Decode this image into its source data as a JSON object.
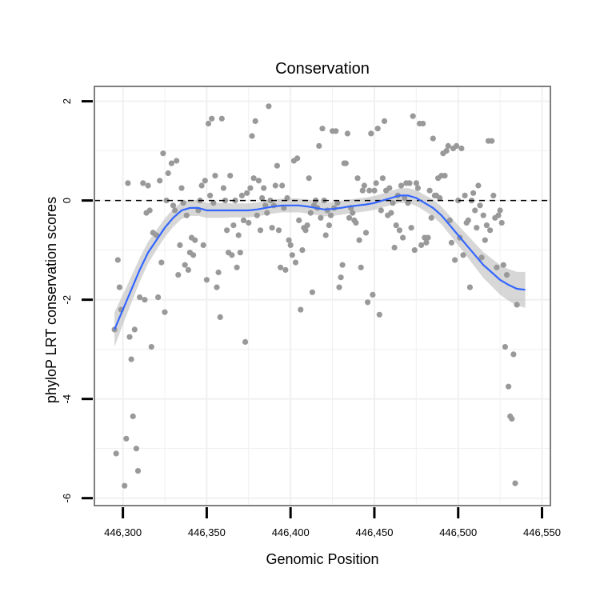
{
  "chart_data": {
    "type": "scatter",
    "title": "Conservation",
    "xlabel": "Genomic Position",
    "ylabel": "phyloP LRT conservation scores",
    "xlim": [
      446283,
      446555
    ],
    "ylim": [
      -6.15,
      2.3
    ],
    "x_ticks": [
      446300,
      446350,
      446400,
      446450,
      446500,
      446550
    ],
    "x_tick_labels": [
      "446,300",
      "446,350",
      "446,400",
      "446,450",
      "446,500",
      "446,550"
    ],
    "y_ticks": [
      -6,
      -4,
      -2,
      0,
      2
    ],
    "y_tick_labels": [
      "-6",
      "-4",
      "-2",
      "0",
      "2"
    ],
    "grid": true,
    "reference_line": {
      "y": 0,
      "style": "dashed"
    },
    "colors": {
      "points": "#999999",
      "smooth_line": "#3366ff",
      "ribbon": "#bdbdbd",
      "frame": "#7f7f7f",
      "grid": "#f0f0f0"
    },
    "points": [
      [
        446295,
        -2.6
      ],
      [
        446296,
        -5.1
      ],
      [
        446297,
        -1.2
      ],
      [
        446298,
        -1.75
      ],
      [
        446299,
        -2.2
      ],
      [
        446301,
        -5.75
      ],
      [
        446302,
        -4.8
      ],
      [
        446303,
        0.35
      ],
      [
        446304,
        -2.75
      ],
      [
        446305,
        -3.2
      ],
      [
        446306,
        -4.35
      ],
      [
        446307,
        -2.6
      ],
      [
        446308,
        -5.0
      ],
      [
        446309,
        -5.45
      ],
      [
        446310,
        -1.95
      ],
      [
        446312,
        0.35
      ],
      [
        446313,
        -2.0
      ],
      [
        446314,
        -0.25
      ],
      [
        446315,
        0.3
      ],
      [
        446316,
        -0.2
      ],
      [
        446317,
        -2.95
      ],
      [
        446318,
        -0.65
      ],
      [
        446320,
        -0.7
      ],
      [
        446321,
        -1.95
      ],
      [
        446322,
        0.4
      ],
      [
        446323,
        -1.25
      ],
      [
        446324,
        0.95
      ],
      [
        446325,
        -2.25
      ],
      [
        446326,
        0.0
      ],
      [
        446327,
        0.55
      ],
      [
        446329,
        0.75
      ],
      [
        446330,
        -0.1
      ],
      [
        446331,
        -0.2
      ],
      [
        446332,
        0.8
      ],
      [
        446333,
        -1.5
      ],
      [
        446334,
        -0.9
      ],
      [
        446335,
        0.25
      ],
      [
        446336,
        -0.05
      ],
      [
        446337,
        -1.3
      ],
      [
        446338,
        -0.3
      ],
      [
        446339,
        -1.4
      ],
      [
        446340,
        -1.05
      ],
      [
        446341,
        -0.75
      ],
      [
        446342,
        -1.1
      ],
      [
        446343,
        -0.8
      ],
      [
        446345,
        -0.2
      ],
      [
        446346,
        0.0
      ],
      [
        446347,
        0.3
      ],
      [
        446348,
        -0.9
      ],
      [
        446349,
        0.4
      ],
      [
        446350,
        -1.6
      ],
      [
        446351,
        1.55
      ],
      [
        446352,
        0.1
      ],
      [
        446353,
        1.65
      ],
      [
        446354,
        -0.05
      ],
      [
        446355,
        0.5
      ],
      [
        446356,
        -1.75
      ],
      [
        446357,
        -1.45
      ],
      [
        446358,
        -2.35
      ],
      [
        446359,
        1.65
      ],
      [
        446360,
        0.25
      ],
      [
        446361,
        0.0
      ],
      [
        446362,
        -0.6
      ],
      [
        446363,
        -1.05
      ],
      [
        446364,
        0.5
      ],
      [
        446365,
        -1.1
      ],
      [
        446366,
        -0.5
      ],
      [
        446367,
        0.0
      ],
      [
        446368,
        -1.35
      ],
      [
        446369,
        -0.7
      ],
      [
        446370,
        -1.05
      ],
      [
        446371,
        0.1
      ],
      [
        446372,
        -0.4
      ],
      [
        446373,
        -2.85
      ],
      [
        446374,
        0.15
      ],
      [
        446375,
        -0.45
      ],
      [
        446376,
        0.25
      ],
      [
        446377,
        1.3
      ],
      [
        446378,
        0.45
      ],
      [
        446379,
        1.6
      ],
      [
        446380,
        -0.3
      ],
      [
        446381,
        0.4
      ],
      [
        446382,
        -0.6
      ],
      [
        446383,
        0.05
      ],
      [
        446384,
        0.25
      ],
      [
        446385,
        -0.1
      ],
      [
        446386,
        -0.25
      ],
      [
        446387,
        1.9
      ],
      [
        446388,
        0.0
      ],
      [
        446389,
        -0.55
      ],
      [
        446390,
        -0.1
      ],
      [
        446391,
        0.3
      ],
      [
        446392,
        0.7
      ],
      [
        446393,
        -0.6
      ],
      [
        446394,
        -1.35
      ],
      [
        446395,
        0.3
      ],
      [
        446396,
        -0.15
      ],
      [
        446397,
        -1.4
      ],
      [
        446398,
        0.05
      ],
      [
        446399,
        -0.8
      ],
      [
        446400,
        -0.9
      ],
      [
        446401,
        -1.1
      ],
      [
        446402,
        0.8
      ],
      [
        446403,
        -1.25
      ],
      [
        446404,
        0.85
      ],
      [
        446405,
        -0.4
      ],
      [
        446406,
        -2.2
      ],
      [
        446407,
        -1.0
      ],
      [
        446408,
        -0.55
      ],
      [
        446409,
        -0.6
      ],
      [
        446410,
        -0.5
      ],
      [
        446411,
        0.45
      ],
      [
        446412,
        -0.25
      ],
      [
        446413,
        -1.85
      ],
      [
        446414,
        -0.1
      ],
      [
        446415,
        0.0
      ],
      [
        446416,
        -0.15
      ],
      [
        446417,
        1.1
      ],
      [
        446418,
        -0.35
      ],
      [
        446419,
        1.45
      ],
      [
        446420,
        0.0
      ],
      [
        446421,
        -0.7
      ],
      [
        446422,
        -0.2
      ],
      [
        446423,
        -0.5
      ],
      [
        446424,
        -0.3
      ],
      [
        446425,
        1.4
      ],
      [
        446426,
        -0.15
      ],
      [
        446427,
        1.4
      ],
      [
        446428,
        -0.05
      ],
      [
        446429,
        -1.75
      ],
      [
        446430,
        -1.55
      ],
      [
        446431,
        -1.3
      ],
      [
        446432,
        0.75
      ],
      [
        446433,
        0.75
      ],
      [
        446434,
        1.35
      ],
      [
        446435,
        -0.35
      ],
      [
        446436,
        -0.15
      ],
      [
        446437,
        -0.25
      ],
      [
        446438,
        -0.4
      ],
      [
        446439,
        -0.45
      ],
      [
        446440,
        0.45
      ],
      [
        446441,
        -0.8
      ],
      [
        446442,
        -1.35
      ],
      [
        446443,
        0.2
      ],
      [
        446444,
        0.3
      ],
      [
        446445,
        -0.65
      ],
      [
        446446,
        -2.05
      ],
      [
        446447,
        0.2
      ],
      [
        446448,
        1.35
      ],
      [
        446449,
        -1.9
      ],
      [
        446450,
        0.2
      ],
      [
        446451,
        0.35
      ],
      [
        446452,
        1.45
      ],
      [
        446453,
        -2.3
      ],
      [
        446454,
        -0.2
      ],
      [
        446455,
        0.45
      ],
      [
        446456,
        1.6
      ],
      [
        446457,
        0.2
      ],
      [
        446458,
        -0.3
      ],
      [
        446459,
        0.25
      ],
      [
        446460,
        -0.25
      ],
      [
        446461,
        -0.05
      ],
      [
        446462,
        -0.95
      ],
      [
        446463,
        -0.5
      ],
      [
        446464,
        0.1
      ],
      [
        446465,
        -0.6
      ],
      [
        446466,
        0.3
      ],
      [
        446467,
        -0.75
      ],
      [
        446468,
        0.05
      ],
      [
        446469,
        0.35
      ],
      [
        446470,
        -0.05
      ],
      [
        446471,
        0.35
      ],
      [
        446472,
        -0.55
      ],
      [
        446473,
        1.7
      ],
      [
        446474,
        -1.0
      ],
      [
        446475,
        0.35
      ],
      [
        446476,
        0.25
      ],
      [
        446477,
        1.55
      ],
      [
        446478,
        -0.9
      ],
      [
        446479,
        1.55
      ],
      [
        446480,
        -0.75
      ],
      [
        446481,
        -0.85
      ],
      [
        446482,
        -0.75
      ],
      [
        446483,
        0.2
      ],
      [
        446484,
        -0.35
      ],
      [
        446485,
        1.25
      ],
      [
        446486,
        0.1
      ],
      [
        446487,
        0.1
      ],
      [
        446488,
        0.45
      ],
      [
        446489,
        0.05
      ],
      [
        446490,
        0.5
      ],
      [
        446491,
        0.95
      ],
      [
        446492,
        0.5
      ],
      [
        446493,
        1.0
      ],
      [
        446494,
        1.1
      ],
      [
        446495,
        -0.4
      ],
      [
        446496,
        -0.85
      ],
      [
        446497,
        1.05
      ],
      [
        446498,
        -1.2
      ],
      [
        446499,
        1.1
      ],
      [
        446500,
        0.0
      ],
      [
        446501,
        -0.75
      ],
      [
        446502,
        1.05
      ],
      [
        446503,
        -1.1
      ],
      [
        446504,
        0.1
      ],
      [
        446505,
        -0.45
      ],
      [
        446506,
        -0.4
      ],
      [
        446507,
        -1.75
      ],
      [
        446508,
        0.0
      ],
      [
        446509,
        0.15
      ],
      [
        446510,
        -0.2
      ],
      [
        446511,
        -0.55
      ],
      [
        446512,
        0.3
      ],
      [
        446513,
        -0.1
      ],
      [
        446514,
        -1.15
      ],
      [
        446515,
        -0.3
      ],
      [
        446516,
        -0.8
      ],
      [
        446517,
        -0.5
      ],
      [
        446518,
        1.2
      ],
      [
        446519,
        -0.6
      ],
      [
        446520,
        1.2
      ],
      [
        446521,
        0.1
      ],
      [
        446522,
        -0.35
      ],
      [
        446523,
        -1.35
      ],
      [
        446524,
        -0.3
      ],
      [
        446525,
        -0.2
      ],
      [
        446526,
        -0.45
      ],
      [
        446527,
        -1.3
      ],
      [
        446528,
        -2.95
      ],
      [
        446529,
        -1.5
      ],
      [
        446530,
        -3.75
      ],
      [
        446531,
        -4.35
      ],
      [
        446532,
        -4.4
      ],
      [
        446533,
        -3.1
      ],
      [
        446534,
        -5.7
      ],
      [
        446535,
        -2.1
      ]
    ],
    "smooth": [
      [
        446295,
        -2.6
      ],
      [
        446300,
        -2.2
      ],
      [
        446305,
        -1.8
      ],
      [
        446310,
        -1.4
      ],
      [
        446315,
        -1.05
      ],
      [
        446320,
        -0.8
      ],
      [
        446325,
        -0.55
      ],
      [
        446330,
        -0.35
      ],
      [
        446335,
        -0.2
      ],
      [
        446340,
        -0.15
      ],
      [
        446345,
        -0.15
      ],
      [
        446350,
        -0.2
      ],
      [
        446355,
        -0.2
      ],
      [
        446360,
        -0.2
      ],
      [
        446365,
        -0.2
      ],
      [
        446370,
        -0.2
      ],
      [
        446375,
        -0.2
      ],
      [
        446380,
        -0.18
      ],
      [
        446385,
        -0.15
      ],
      [
        446390,
        -0.12
      ],
      [
        446395,
        -0.1
      ],
      [
        446400,
        -0.1
      ],
      [
        446405,
        -0.1
      ],
      [
        446410,
        -0.12
      ],
      [
        446415,
        -0.15
      ],
      [
        446420,
        -0.18
      ],
      [
        446425,
        -0.17
      ],
      [
        446430,
        -0.15
      ],
      [
        446435,
        -0.12
      ],
      [
        446440,
        -0.1
      ],
      [
        446445,
        -0.08
      ],
      [
        446450,
        -0.05
      ],
      [
        446455,
        0.0
      ],
      [
        446460,
        0.05
      ],
      [
        446465,
        0.1
      ],
      [
        446470,
        0.1
      ],
      [
        446475,
        0.05
      ],
      [
        446480,
        -0.05
      ],
      [
        446485,
        -0.15
      ],
      [
        446490,
        -0.3
      ],
      [
        446495,
        -0.5
      ],
      [
        446500,
        -0.7
      ],
      [
        446505,
        -0.9
      ],
      [
        446510,
        -1.1
      ],
      [
        446515,
        -1.3
      ],
      [
        446520,
        -1.45
      ],
      [
        446525,
        -1.6
      ],
      [
        446530,
        -1.7
      ],
      [
        446535,
        -1.78
      ],
      [
        446540,
        -1.8
      ]
    ],
    "ribbon_halfwidth": [
      0.35,
      0.3,
      0.27,
      0.24,
      0.22,
      0.2,
      0.19,
      0.18,
      0.17,
      0.16,
      0.16,
      0.15,
      0.15,
      0.15,
      0.14,
      0.14,
      0.14,
      0.14,
      0.14,
      0.14,
      0.14,
      0.14,
      0.14,
      0.14,
      0.14,
      0.14,
      0.14,
      0.14,
      0.14,
      0.14,
      0.14,
      0.14,
      0.14,
      0.14,
      0.15,
      0.15,
      0.16,
      0.16,
      0.17,
      0.18,
      0.19,
      0.2,
      0.22,
      0.24,
      0.26,
      0.28,
      0.3,
      0.32,
      0.34,
      0.36
    ]
  }
}
